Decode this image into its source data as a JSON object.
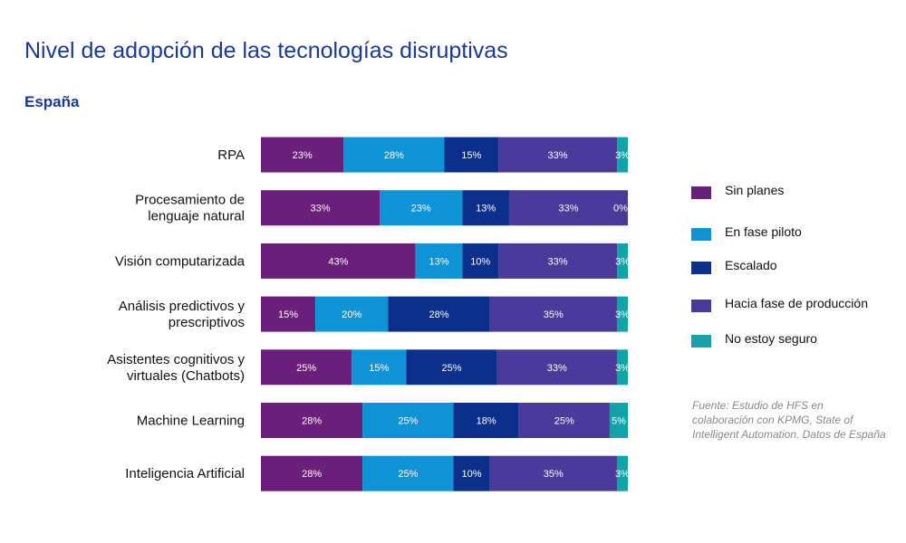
{
  "title": "Nivel de adopción de las tecnologías disruptivas",
  "subtitle": "España",
  "source": "Fuente: Estudio de HFS en colaboración con KPMG, State of Intelligent Automation. Datos de España",
  "colors": {
    "sin_planes": "#6a1f7a",
    "en_fase_piloto": "#0e94d6",
    "escalado": "#0b2f8a",
    "hacia_fase_produccion": "#4a3a9a",
    "no_estoy_seguro": "#12a3a8",
    "label_text": "#ffffff",
    "category_text": "#111111"
  },
  "legend": [
    {
      "label": "Sin planes",
      "color_key": "sin_planes"
    },
    {
      "label": "En fase piloto",
      "color_key": "en_fase_piloto"
    },
    {
      "label": "Escalado",
      "color_key": "escalado"
    },
    {
      "label": "Hacia fase de producción",
      "color_key": "hacia_fase_produccion"
    },
    {
      "label": "No estoy seguro",
      "color_key": "no_estoy_seguro"
    }
  ],
  "chart_data": {
    "type": "bar",
    "orientation": "horizontal",
    "stacked": true,
    "categories": [
      [
        "RPA"
      ],
      [
        "Procesamiento de",
        "lenguaje natural"
      ],
      [
        "Visión computarizada"
      ],
      [
        "Análisis predictivos y",
        "prescriptivos"
      ],
      [
        "Asistentes cognitivos  y",
        "virtuales (Chatbots)"
      ],
      [
        "Machine Learning"
      ],
      [
        "Inteligencia Artificial"
      ]
    ],
    "series": [
      {
        "name": "Sin planes",
        "color_key": "sin_planes",
        "values": [
          23,
          33,
          43,
          15,
          25,
          28,
          28
        ],
        "labels": [
          "23%",
          "33%",
          "43%",
          "15%",
          "25%",
          "28%",
          "28%"
        ]
      },
      {
        "name": "En fase piloto",
        "color_key": "en_fase_piloto",
        "values": [
          28,
          23,
          13,
          20,
          15,
          25,
          25
        ],
        "labels": [
          "28%",
          "23%",
          "13%",
          "20%",
          "15%",
          "25%",
          "25%"
        ]
      },
      {
        "name": "Escalado",
        "color_key": "escalado",
        "values": [
          15,
          13,
          10,
          28,
          25,
          18,
          10
        ],
        "labels": [
          "15%",
          "13%",
          "10%",
          "28%",
          "25%",
          "18%",
          "10%"
        ]
      },
      {
        "name": "Hacia fase de producción",
        "color_key": "hacia_fase_produccion",
        "values": [
          33,
          33,
          33,
          35,
          33,
          25,
          35
        ],
        "labels": [
          "33%",
          "33%",
          "33%",
          "35%",
          "33%",
          "25%",
          "35%"
        ]
      },
      {
        "name": "No estoy seguro",
        "color_key": "no_estoy_seguro",
        "values": [
          3,
          0,
          3,
          3,
          3,
          5,
          3
        ],
        "labels": [
          "3%",
          "0%",
          "3%",
          "3%",
          "3%",
          "5%",
          "3%"
        ]
      }
    ],
    "legend_position": "right",
    "grid": false
  }
}
